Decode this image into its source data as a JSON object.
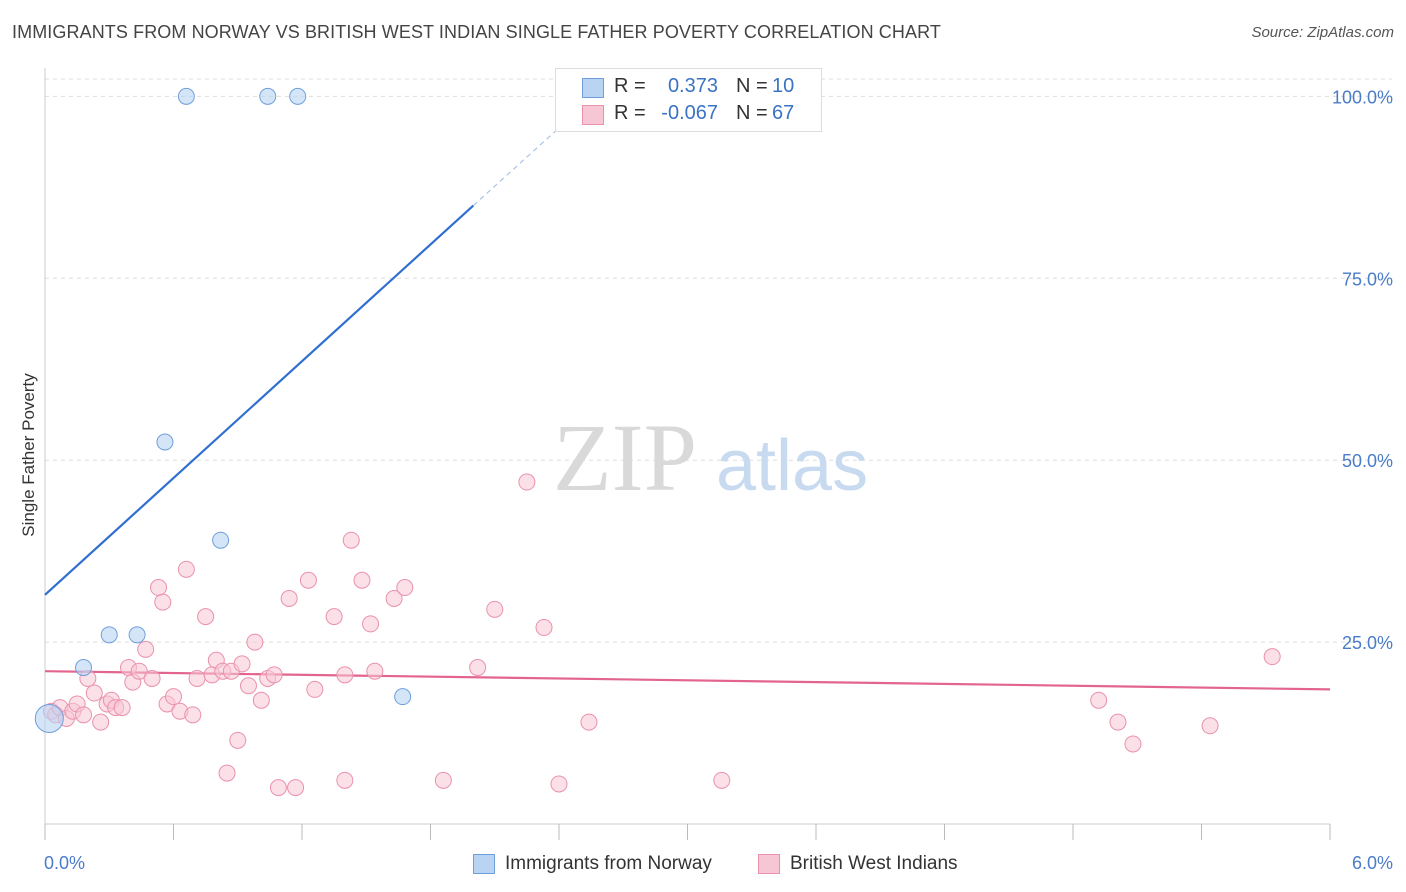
{
  "title": "IMMIGRANTS FROM NORWAY VS BRITISH WEST INDIAN SINGLE FATHER POVERTY CORRELATION CHART",
  "source": "Source: ZipAtlas.com",
  "watermark": {
    "zip": "ZIP",
    "atlas": "atlas"
  },
  "colors": {
    "norway_fill": "#b9d3f3",
    "norway_stroke": "#6f9fdb",
    "norway_line": "#2f6fd0",
    "bwi_fill": "#f7c6d5",
    "bwi_stroke": "#ea91ad",
    "bwi_line": "#e3648e",
    "tick_label": "#4a7cc9",
    "grid": "#dddddd"
  },
  "legend_top": [
    {
      "r_label": "R =",
      "r_value": "0.373",
      "n_label": "N =",
      "n_value": "10"
    },
    {
      "r_label": "R =",
      "r_value": "-0.067",
      "n_label": "N =",
      "n_value": "67"
    }
  ],
  "chart_data": {
    "type": "scatter",
    "xlabel": "",
    "ylabel": "Single Father Poverty",
    "xlim": [
      0,
      6
    ],
    "ylim": [
      0,
      105
    ],
    "x_tick_labels": [
      "0.0%",
      "6.0%"
    ],
    "y_ticks": [
      25,
      50,
      75,
      100
    ],
    "y_tick_labels": [
      "25.0%",
      "50.0%",
      "75.0%",
      "100.0%"
    ],
    "series": [
      {
        "name": "Immigrants from Norway",
        "color": "#6f9fdb",
        "r": 0.373,
        "n": 10,
        "points": [
          [
            0.02,
            14.5
          ],
          [
            0.18,
            21.5
          ],
          [
            0.3,
            26
          ],
          [
            0.43,
            26
          ],
          [
            0.56,
            52.5
          ],
          [
            0.66,
            100
          ],
          [
            0.82,
            39
          ],
          [
            1.04,
            100
          ],
          [
            1.18,
            100
          ],
          [
            1.67,
            17.5
          ]
        ],
        "trend": {
          "x0": 0,
          "y0": 31.5,
          "x1": 2.0,
          "y1": 85,
          "dash_x1": 2.45,
          "dash_y1": 97
        }
      },
      {
        "name": "British West Indians",
        "color": "#ea91ad",
        "r": -0.067,
        "n": 67,
        "points": [
          [
            0.03,
            15.5
          ],
          [
            0.05,
            15
          ],
          [
            0.07,
            16
          ],
          [
            0.1,
            14.5
          ],
          [
            0.13,
            15.5
          ],
          [
            0.15,
            16.5
          ],
          [
            0.18,
            15
          ],
          [
            0.2,
            20
          ],
          [
            0.23,
            18
          ],
          [
            0.26,
            14
          ],
          [
            0.29,
            16.5
          ],
          [
            0.31,
            17
          ],
          [
            0.33,
            16
          ],
          [
            0.36,
            16
          ],
          [
            0.39,
            21.5
          ],
          [
            0.41,
            19.5
          ],
          [
            0.44,
            21
          ],
          [
            0.47,
            24
          ],
          [
            0.5,
            20
          ],
          [
            0.53,
            32.5
          ],
          [
            0.55,
            30.5
          ],
          [
            0.57,
            16.5
          ],
          [
            0.6,
            17.5
          ],
          [
            0.63,
            15.5
          ],
          [
            0.66,
            35
          ],
          [
            0.69,
            15
          ],
          [
            0.71,
            20
          ],
          [
            0.75,
            28.5
          ],
          [
            0.78,
            20.5
          ],
          [
            0.8,
            22.5
          ],
          [
            0.83,
            21
          ],
          [
            0.85,
            7
          ],
          [
            0.87,
            21
          ],
          [
            0.9,
            11.5
          ],
          [
            0.92,
            22
          ],
          [
            0.95,
            19
          ],
          [
            0.98,
            25
          ],
          [
            1.01,
            17
          ],
          [
            1.04,
            20
          ],
          [
            1.07,
            20.5
          ],
          [
            1.09,
            5
          ],
          [
            1.14,
            31
          ],
          [
            1.17,
            5
          ],
          [
            1.23,
            33.5
          ],
          [
            1.26,
            18.5
          ],
          [
            1.35,
            28.5
          ],
          [
            1.4,
            6
          ],
          [
            1.4,
            20.5
          ],
          [
            1.43,
            39
          ],
          [
            1.48,
            33.5
          ],
          [
            1.52,
            27.5
          ],
          [
            1.54,
            21
          ],
          [
            1.63,
            31
          ],
          [
            1.68,
            32.5
          ],
          [
            1.86,
            6
          ],
          [
            2.02,
            21.5
          ],
          [
            2.1,
            29.5
          ],
          [
            2.25,
            47
          ],
          [
            2.33,
            27
          ],
          [
            2.4,
            5.5
          ],
          [
            2.54,
            14
          ],
          [
            3.16,
            6
          ],
          [
            4.92,
            17
          ],
          [
            5.01,
            14
          ],
          [
            5.08,
            11
          ],
          [
            5.44,
            13.5
          ],
          [
            5.73,
            23
          ]
        ],
        "trend": {
          "x0": 0,
          "y0": 21,
          "x1": 6,
          "y1": 18.5
        }
      }
    ]
  }
}
